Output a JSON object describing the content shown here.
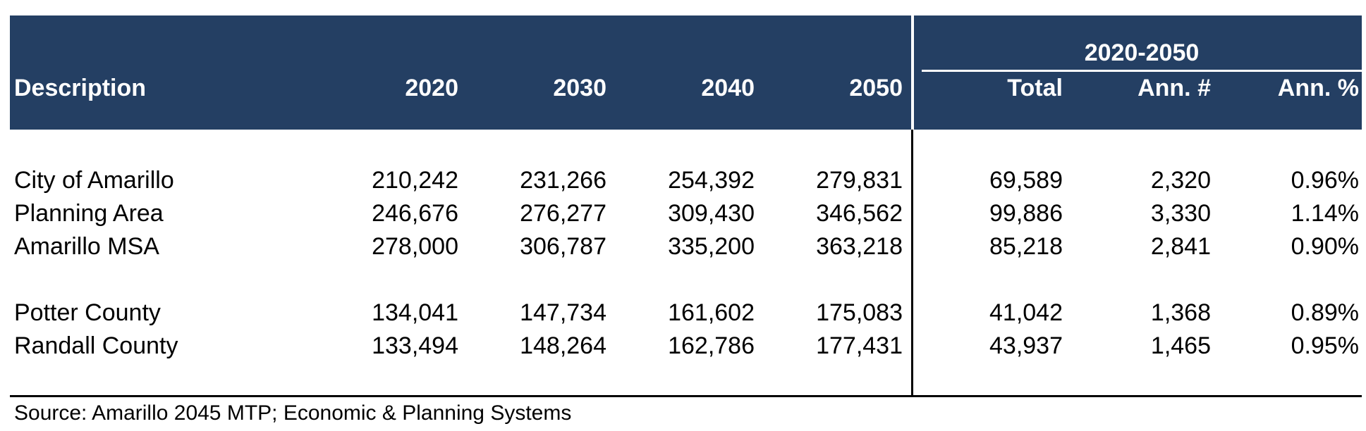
{
  "table": {
    "span_header": "2020-2050",
    "columns": [
      "Description",
      "2020",
      "2030",
      "2040",
      "2050",
      "Total",
      "Ann. #",
      "Ann. %"
    ],
    "groups": [
      [
        [
          "City of Amarillo",
          "210,242",
          "231,266",
          "254,392",
          "279,831",
          "69,589",
          "2,320",
          "0.96%"
        ],
        [
          "Planning Area",
          "246,676",
          "276,277",
          "309,430",
          "346,562",
          "99,886",
          "3,330",
          "1.14%"
        ],
        [
          "Amarillo MSA",
          "278,000",
          "306,787",
          "335,200",
          "363,218",
          "85,218",
          "2,841",
          "0.90%"
        ]
      ],
      [
        [
          "Potter County",
          "134,041",
          "147,734",
          "161,602",
          "175,083",
          "41,042",
          "1,368",
          "0.89%"
        ],
        [
          "Randall County",
          "133,494",
          "148,264",
          "162,786",
          "177,431",
          "43,937",
          "1,465",
          "0.95%"
        ]
      ]
    ]
  },
  "footer": {
    "source": "Source: Amarillo 2045 MTP; Economic & Planning Systems"
  },
  "colors": {
    "header_bg": "#243f63",
    "header_text": "#ffffff",
    "body_text": "#000000"
  }
}
